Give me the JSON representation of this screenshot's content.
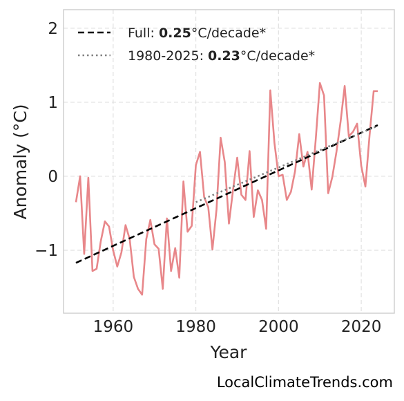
{
  "chart_data": {
    "type": "line",
    "xlabel": "Year",
    "ylabel": "Anomaly (°C)",
    "xlim": [
      1948,
      2028
    ],
    "ylim": [
      -1.85,
      2.25
    ],
    "x_ticks": [
      1960,
      1980,
      2000,
      2020
    ],
    "y_ticks": [
      -1,
      0,
      1,
      2
    ],
    "y_tick_labels": [
      "−1",
      "0",
      "1",
      "2"
    ],
    "grid": true,
    "legend_position": "top-left",
    "series": [
      {
        "style": "solid",
        "color": "#e8878a",
        "x": [
          1951,
          1952,
          1953,
          1954,
          1955,
          1956,
          1957,
          1958,
          1959,
          1960,
          1961,
          1962,
          1963,
          1964,
          1965,
          1966,
          1967,
          1968,
          1969,
          1970,
          1971,
          1972,
          1973,
          1974,
          1975,
          1976,
          1977,
          1978,
          1979,
          1980,
          1981,
          1982,
          1983,
          1984,
          1985,
          1986,
          1987,
          1988,
          1989,
          1990,
          1991,
          1992,
          1993,
          1994,
          1995,
          1996,
          1997,
          1998,
          1999,
          2000,
          2001,
          2002,
          2003,
          2004,
          2005,
          2006,
          2007,
          2008,
          2009,
          2010,
          2011,
          2012,
          2013,
          2014,
          2015,
          2016,
          2017,
          2018,
          2019,
          2020,
          2021,
          2022,
          2023,
          2024
        ],
        "y": [
          -0.35,
          0.0,
          -1.05,
          -0.02,
          -1.28,
          -1.25,
          -0.88,
          -0.61,
          -0.68,
          -1.0,
          -1.22,
          -1.03,
          -0.66,
          -0.85,
          -1.36,
          -1.52,
          -1.6,
          -0.85,
          -0.59,
          -0.92,
          -0.98,
          -1.52,
          -0.57,
          -1.28,
          -0.97,
          -1.37,
          -0.07,
          -0.75,
          -0.67,
          0.15,
          0.33,
          -0.28,
          -0.42,
          -0.99,
          -0.45,
          0.52,
          0.19,
          -0.64,
          -0.18,
          0.25,
          -0.25,
          -0.32,
          0.34,
          -0.55,
          -0.19,
          -0.32,
          -0.71,
          1.16,
          0.45,
          0.0,
          0.02,
          -0.32,
          -0.21,
          0.07,
          0.57,
          0.13,
          0.33,
          -0.18,
          0.5,
          1.26,
          1.09,
          -0.23,
          -0.01,
          0.33,
          0.74,
          1.22,
          0.54,
          0.6,
          0.71,
          0.14,
          -0.14,
          0.55,
          1.15,
          1.15
        ]
      },
      {
        "name": "Full",
        "style": "dashed",
        "color": "#000000",
        "x": [
          1951,
          2024
        ],
        "y": [
          -1.17,
          0.69
        ]
      },
      {
        "name": "1980-2025",
        "style": "dotted",
        "color": "#808080",
        "x": [
          1980,
          2024
        ],
        "y": [
          -0.35,
          0.68
        ]
      }
    ]
  },
  "legend": {
    "items": [
      {
        "prefix": "Full: ",
        "value": "0.25",
        "suffix": "°C/decade*"
      },
      {
        "prefix": "1980-2025: ",
        "value": "0.23",
        "suffix": "°C/decade*"
      }
    ]
  },
  "footer": {
    "source": "LocalClimateTrends.com"
  }
}
